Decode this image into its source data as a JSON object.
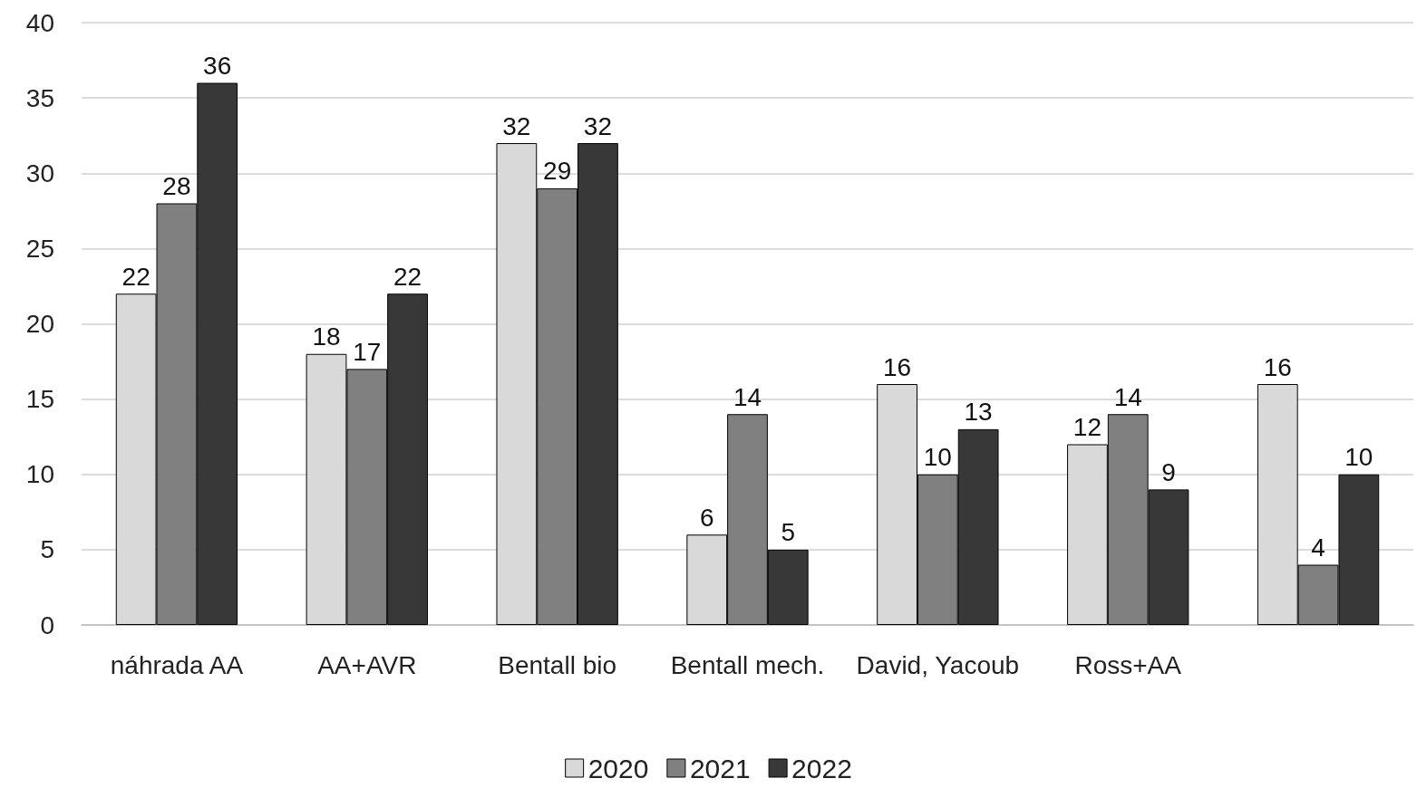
{
  "chart_data": {
    "type": "bar",
    "categories": [
      "náhrada AA",
      "AA+AVR",
      "Bentall bio",
      "Bentall mech.",
      "David, Yacoub",
      "Ross+AA",
      null
    ],
    "series": [
      {
        "name": "2020",
        "color": "#d9d9d9",
        "values": [
          22,
          18,
          32,
          6,
          16,
          12,
          16
        ]
      },
      {
        "name": "2021",
        "color": "#808080",
        "values": [
          28,
          17,
          29,
          14,
          10,
          14,
          4
        ]
      },
      {
        "name": "2022",
        "color": "#383838",
        "values": [
          36,
          22,
          32,
          5,
          13,
          9,
          10
        ]
      }
    ],
    "ylim": [
      0,
      40
    ],
    "yticks": [
      0,
      5,
      10,
      15,
      20,
      25,
      30,
      35,
      40
    ],
    "grid": "y",
    "legend": "bottom",
    "data_labels": true
  }
}
